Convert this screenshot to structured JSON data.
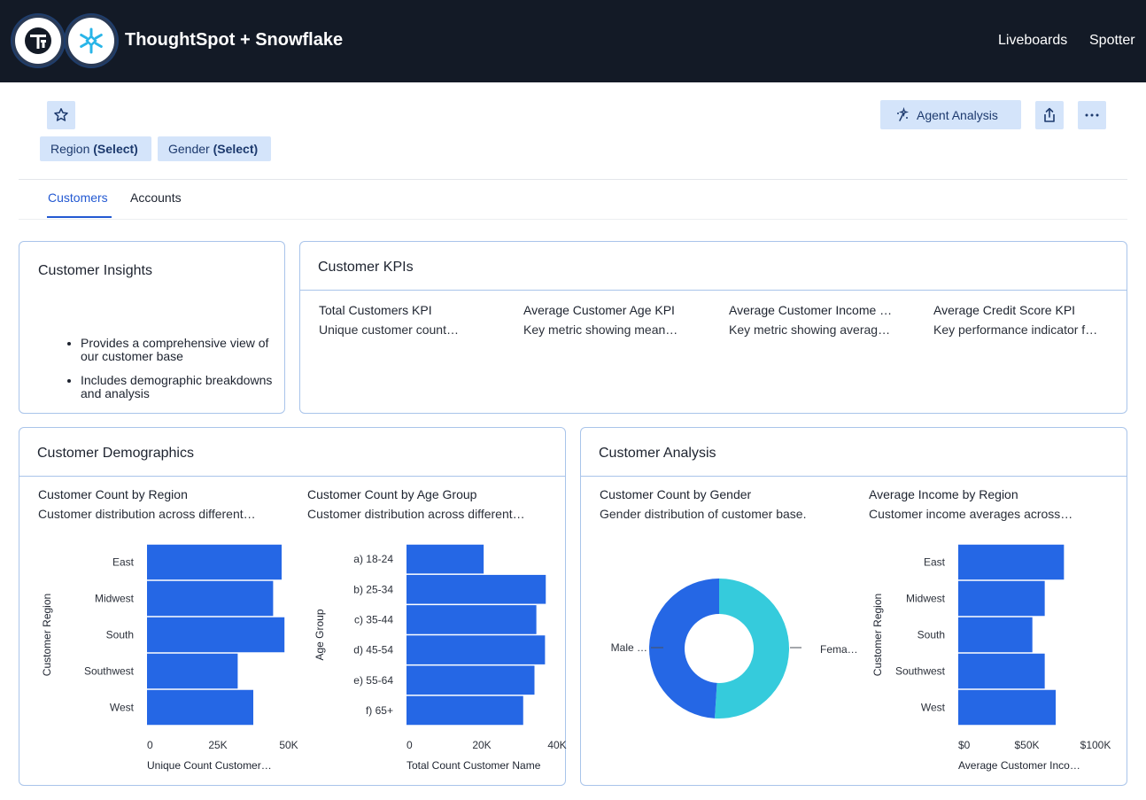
{
  "header": {
    "title": "ThoughtSpot + Snowflake",
    "nav": [
      "Liveboards",
      "Spotter"
    ]
  },
  "toolbar": {
    "agent_label": "Agent Analysis",
    "filters": [
      {
        "name": "Region",
        "value": "(Select)"
      },
      {
        "name": "Gender",
        "value": "(Select)"
      }
    ]
  },
  "tabs": [
    "Customers",
    "Accounts"
  ],
  "insights": {
    "title": "Customer Insights",
    "bullets": [
      "Provides a comprehensive view of our customer base",
      "Includes demographic breakdowns and analysis"
    ]
  },
  "kpis": {
    "title": "Customer KPIs",
    "items": [
      {
        "name": "Total Customers KPI",
        "desc": "Unique customer count…"
      },
      {
        "name": "Average Customer Age KPI",
        "desc": "Key metric showing mean…"
      },
      {
        "name": "Average Customer Income …",
        "desc": "Key metric showing averag…"
      },
      {
        "name": "Average Credit Score KPI",
        "desc": "Key performance indicator f…"
      }
    ]
  },
  "demographics": {
    "title": "Customer Demographics"
  },
  "analysis": {
    "title": "Customer Analysis"
  },
  "colors": {
    "bar": "#2567e5",
    "female": "#35cbdc",
    "male": "#2567e5"
  },
  "chart_data": [
    {
      "type": "bar",
      "orientation": "horizontal",
      "title": "Customer Count by Region",
      "subtitle": "Customer distribution across different…",
      "categories": [
        "East",
        "Midwest",
        "South",
        "Southwest",
        "West"
      ],
      "values": [
        47500,
        44500,
        48500,
        32000,
        37500
      ],
      "xlabel": "Unique Count Customer…",
      "ylabel": "Customer Region",
      "xticks": [
        "0",
        "25K",
        "50K"
      ],
      "xlim": [
        0,
        50000
      ]
    },
    {
      "type": "bar",
      "orientation": "horizontal",
      "title": "Customer Count by Age Group",
      "subtitle": "Customer distribution across different…",
      "categories": [
        "a) 18-24",
        "b) 25-34",
        "c) 35-44",
        "d) 45-54",
        "e) 55-64",
        "f) 65+"
      ],
      "values": [
        20500,
        37000,
        34500,
        36800,
        34000,
        31000
      ],
      "xlabel": "Total Count Customer Name",
      "ylabel": "Age Group",
      "xticks": [
        "0",
        "20K",
        "40K"
      ],
      "xlim": [
        0,
        40000
      ]
    },
    {
      "type": "pie",
      "donut": true,
      "title": "Customer Count by Gender",
      "subtitle": "Gender distribution of customer base.",
      "categories": [
        "Male …",
        "Fema…"
      ],
      "values": [
        49,
        51
      ]
    },
    {
      "type": "bar",
      "orientation": "horizontal",
      "title": "Average Income by Region",
      "subtitle": "Customer income averages across…",
      "categories": [
        "East",
        "Midwest",
        "South",
        "Southwest",
        "West"
      ],
      "values": [
        77000,
        63000,
        54000,
        63000,
        71000
      ],
      "xlabel": "Average Customer Inco…",
      "ylabel": "Customer Region",
      "xticks": [
        "$0",
        "$50K",
        "$100K"
      ],
      "xlim": [
        0,
        100000
      ]
    }
  ]
}
